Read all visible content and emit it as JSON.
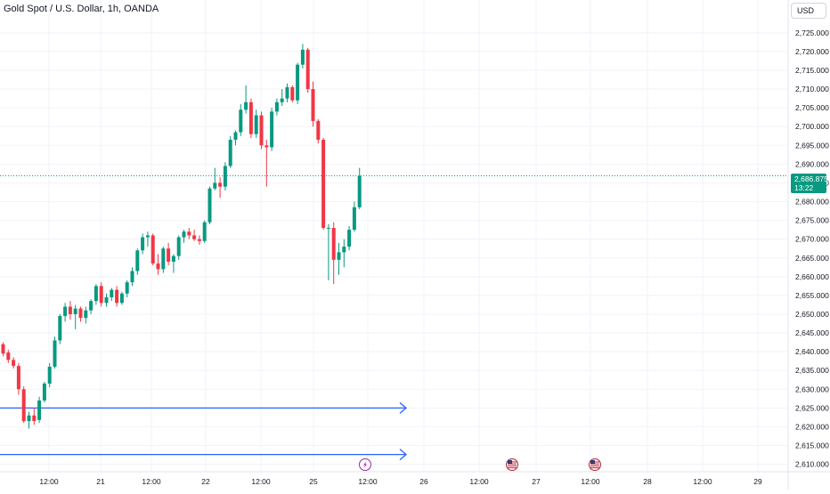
{
  "header": {
    "title": "Gold Spot / U.S. Dollar, 1h, OANDA"
  },
  "toolbar": {
    "currency_label": "USD"
  },
  "price_badge": {
    "price": "2,686.875",
    "countdown": "13:22"
  },
  "colors": {
    "up": "#089981",
    "down": "#f23645",
    "line": "#2962ff",
    "price_line": "#089981",
    "grid": "#f0f3fa"
  },
  "events": [
    {
      "icon": "lightning-icon",
      "x_label": "12:00",
      "day": "25"
    },
    {
      "icon": "us-flag-icon",
      "day": "26"
    },
    {
      "icon": "us-flag-icon",
      "day": "27"
    }
  ],
  "chart_data": {
    "type": "candlestick",
    "title": "Gold Spot / U.S. Dollar, 1h, OANDA",
    "currency": "USD",
    "ylim": [
      2608,
      2729
    ],
    "y_ticks": [
      "2,610.000",
      "2,615.000",
      "2,620.000",
      "2,625.000",
      "2,630.000",
      "2,635.000",
      "2,640.000",
      "2,645.000",
      "2,650.000",
      "2,655.000",
      "2,660.000",
      "2,665.000",
      "2,670.000",
      "2,675.000",
      "2,680.000",
      "2,685.000",
      "2,690.000",
      "2,695.000",
      "2,700.000",
      "2,705.000",
      "2,710.000",
      "2,715.000",
      "2,720.000",
      "2,725.000"
    ],
    "x_ticks": [
      "12:00",
      "21",
      "12:00",
      "22",
      "12:00",
      "25",
      "12:00",
      "26",
      "12:00",
      "27",
      "12:00",
      "28",
      "12:00",
      "29"
    ],
    "last_price": 2686.875,
    "horizontal_lines": [
      2625.0,
      2612.6
    ],
    "candles": [
      [
        2642.0,
        2642.5,
        2638.8,
        2639.5
      ],
      [
        2639.8,
        2640.5,
        2637.0,
        2637.8
      ],
      [
        2637.8,
        2638.5,
        2635.5,
        2636.2
      ],
      [
        2636.2,
        2637.0,
        2628.5,
        2630.0
      ],
      [
        2630.0,
        2630.8,
        2621.0,
        2621.5
      ],
      [
        2621.5,
        2624.0,
        2619.5,
        2623.0
      ],
      [
        2623.0,
        2625.0,
        2620.5,
        2621.5
      ],
      [
        2621.8,
        2628.0,
        2621.0,
        2627.0
      ],
      [
        2627.0,
        2632.0,
        2626.5,
        2631.5
      ],
      [
        2631.5,
        2637.0,
        2630.5,
        2636.0
      ],
      [
        2636.0,
        2644.0,
        2635.5,
        2643.0
      ],
      [
        2643.0,
        2650.0,
        2642.0,
        2649.5
      ],
      [
        2649.5,
        2653.0,
        2648.0,
        2652.0
      ],
      [
        2652.0,
        2653.5,
        2648.5,
        2650.0
      ],
      [
        2650.0,
        2652.5,
        2646.0,
        2651.5
      ],
      [
        2651.5,
        2652.0,
        2648.0,
        2649.0
      ],
      [
        2649.0,
        2652.0,
        2647.5,
        2651.0
      ],
      [
        2651.0,
        2654.0,
        2650.0,
        2653.5
      ],
      [
        2653.5,
        2658.0,
        2652.5,
        2657.5
      ],
      [
        2657.5,
        2658.5,
        2652.0,
        2653.0
      ],
      [
        2653.0,
        2655.5,
        2652.0,
        2654.5
      ],
      [
        2654.5,
        2657.0,
        2653.5,
        2656.5
      ],
      [
        2656.5,
        2657.5,
        2652.0,
        2653.0
      ],
      [
        2653.0,
        2656.0,
        2652.5,
        2655.5
      ],
      [
        2655.5,
        2659.0,
        2654.5,
        2658.5
      ],
      [
        2658.5,
        2662.5,
        2657.5,
        2661.5
      ],
      [
        2661.5,
        2667.5,
        2660.5,
        2667.0
      ],
      [
        2667.0,
        2671.5,
        2666.0,
        2670.5
      ],
      [
        2670.5,
        2672.0,
        2668.0,
        2671.0
      ],
      [
        2671.0,
        2671.5,
        2663.0,
        2663.5
      ],
      [
        2663.5,
        2666.0,
        2660.5,
        2662.0
      ],
      [
        2662.0,
        2668.0,
        2661.0,
        2667.5
      ],
      [
        2667.5,
        2669.0,
        2663.0,
        2664.0
      ],
      [
        2664.0,
        2666.0,
        2661.0,
        2665.5
      ],
      [
        2665.5,
        2671.0,
        2664.5,
        2670.5
      ],
      [
        2670.5,
        2672.5,
        2669.0,
        2672.0
      ],
      [
        2672.0,
        2673.0,
        2670.0,
        2671.0
      ],
      [
        2671.0,
        2672.5,
        2669.5,
        2670.0
      ],
      [
        2670.0,
        2671.0,
        2668.5,
        2669.5
      ],
      [
        2669.5,
        2675.0,
        2669.0,
        2674.5
      ],
      [
        2674.5,
        2684.0,
        2674.0,
        2683.5
      ],
      [
        2683.5,
        2689.0,
        2683.0,
        2685.0
      ],
      [
        2685.0,
        2686.5,
        2681.0,
        2684.0
      ],
      [
        2684.0,
        2690.5,
        2683.0,
        2689.5
      ],
      [
        2689.5,
        2697.5,
        2689.0,
        2696.5
      ],
      [
        2696.5,
        2699.0,
        2695.0,
        2698.5
      ],
      [
        2698.5,
        2706.0,
        2697.5,
        2704.5
      ],
      [
        2704.5,
        2711.0,
        2703.5,
        2706.5
      ],
      [
        2706.5,
        2707.5,
        2697.0,
        2698.0
      ],
      [
        2698.0,
        2704.5,
        2697.0,
        2703.0
      ],
      [
        2703.0,
        2704.0,
        2694.0,
        2695.0
      ],
      [
        2695.0,
        2696.5,
        2684.0,
        2694.5
      ],
      [
        2694.5,
        2705.0,
        2693.5,
        2704.0
      ],
      [
        2704.0,
        2707.5,
        2703.0,
        2706.5
      ],
      [
        2706.5,
        2710.0,
        2705.5,
        2707.5
      ],
      [
        2707.5,
        2711.5,
        2706.5,
        2710.5
      ],
      [
        2710.5,
        2711.0,
        2706.5,
        2707.0
      ],
      [
        2707.0,
        2717.0,
        2706.0,
        2716.5
      ],
      [
        2716.5,
        2722.0,
        2715.5,
        2720.5
      ],
      [
        2720.5,
        2721.0,
        2709.0,
        2710.0
      ],
      [
        2710.0,
        2712.0,
        2700.0,
        2701.5
      ],
      [
        2701.5,
        2702.0,
        2695.5,
        2696.5
      ],
      [
        2696.5,
        2697.0,
        2672.5,
        2673.0
      ],
      [
        2673.0,
        2674.0,
        2659.0,
        2673.0
      ],
      [
        2673.0,
        2674.5,
        2658.0,
        2664.5
      ],
      [
        2664.5,
        2669.0,
        2660.5,
        2666.5
      ],
      [
        2666.5,
        2670.0,
        2662.5,
        2668.0
      ],
      [
        2668.0,
        2673.5,
        2667.0,
        2672.5
      ],
      [
        2672.5,
        2680.0,
        2672.0,
        2678.5
      ],
      [
        2678.5,
        2689.0,
        2678.0,
        2686.875
      ]
    ]
  }
}
